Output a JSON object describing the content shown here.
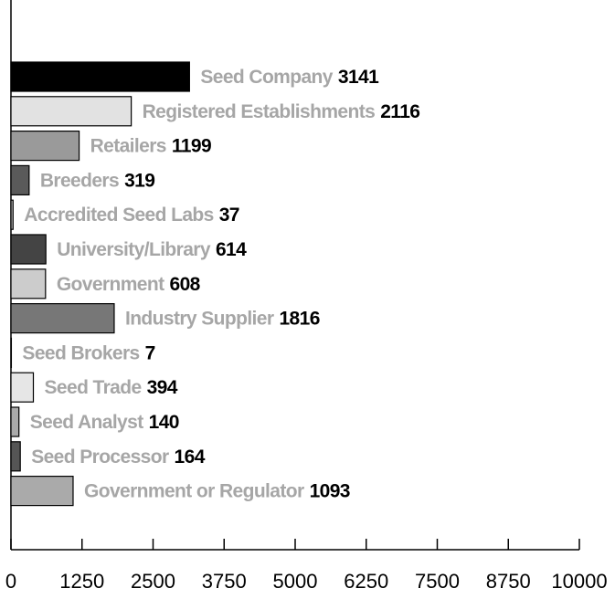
{
  "chart_data": {
    "type": "barh",
    "categories": [
      "Seed Company",
      "Registered Establishments",
      "Retailers",
      "Breeders",
      "Accredited Seed Labs",
      "University/Library",
      "Government",
      "Industry Supplier",
      "Seed Brokers",
      "Seed Trade",
      "Seed Analyst",
      "Seed Processor",
      "Government or Regulator"
    ],
    "values": [
      3141,
      2116,
      1199,
      319,
      37,
      614,
      608,
      1816,
      7,
      394,
      140,
      164,
      1093
    ],
    "colors": [
      "#000000",
      "#e2e2e2",
      "#9a9a9a",
      "#5a5a5a",
      "#bbbbbb",
      "#444444",
      "#cccccc",
      "#777777",
      "#dddddd",
      "#e6e6e6",
      "#aaaaaa",
      "#555555",
      "#aaaaaa"
    ],
    "xlim": [
      0,
      10000
    ],
    "xticks": [
      0,
      1250,
      2500,
      3750,
      5000,
      6250,
      7500,
      8750,
      10000
    ]
  }
}
